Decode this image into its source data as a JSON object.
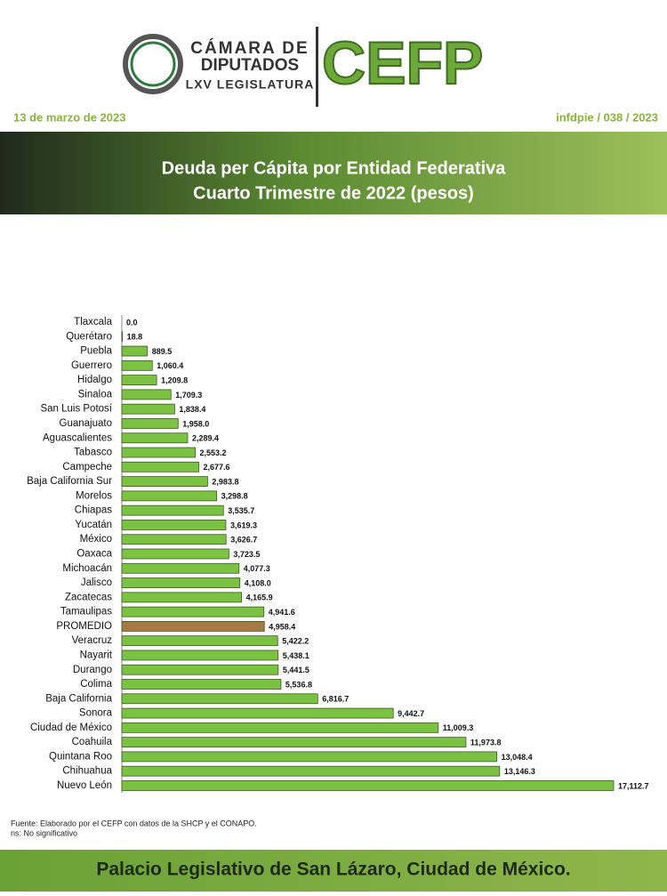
{
  "header": {
    "logo_line1": "CÁMARA DE",
    "logo_line2": "DIPUTADOS",
    "logo_line3": "LXV LEGISLATURA",
    "brand": "CEFP",
    "date": "13 de marzo de 2023",
    "reference": "infdpie / 038 / 2023"
  },
  "chart_data": {
    "type": "bar",
    "orientation": "horizontal",
    "title": "Deuda per Cápita por Entidad Federativa",
    "subtitle": "Cuarto Trimestre de 2022 (pesos)",
    "categories": [
      "Tlaxcala",
      "Querétaro",
      "Puebla",
      "Guerrero",
      "Hidalgo",
      "Sinaloa",
      "San Luis Potosí",
      "Guanajuato",
      "Aguascalientes",
      "Tabasco",
      "Campeche",
      "Baja California Sur",
      "Morelos",
      "Chiapas",
      "Yucatán",
      "México",
      "Oaxaca",
      "Michoacán",
      "Jalisco",
      "Zacatecas",
      "Tamaulipas",
      "PROMEDIO",
      "Veracruz",
      "Nayarit",
      "Durango",
      "Colima",
      "Baja California",
      "Sonora",
      "Ciudad de México",
      "Coahuila",
      "Quintana Roo",
      "Chihuahua",
      "Nuevo León"
    ],
    "values": [
      0,
      18.8,
      889.5,
      1060.4,
      1209.8,
      1709.3,
      1838.4,
      1958,
      2289.4,
      2553.2,
      2677.6,
      2983.8,
      3298.8,
      3535.7,
      3619.3,
      3626.7,
      3723.5,
      4077.3,
      4108,
      4165.9,
      4941.6,
      4958.4,
      5422.2,
      5438.1,
      5441.5,
      5536.8,
      6816.7,
      9442.7,
      11009.3,
      11973.8,
      13048.4,
      13146.3,
      17112.7
    ],
    "value_labels": [
      "0.0",
      "18.8",
      "889.5",
      "1,060.4",
      "1,209.8",
      "1,709.3",
      "1,838.4",
      "1,958.0",
      "2,289.4",
      "2,553.2",
      "2,677.6",
      "2,983.8",
      "3,298.8",
      "3,535.7",
      "3,619.3",
      "3,626.7",
      "3,723.5",
      "4,077.3",
      "4,108.0",
      "4,165.9",
      "4,941.6",
      "4,958.4",
      "5,422.2",
      "5,438.1",
      "5,441.5",
      "5,536.8",
      "6,816.7",
      "9,442.7",
      "11,009.3",
      "11,973.8",
      "13,048.4",
      "13,146.3",
      "17,112.7"
    ],
    "colors": [
      "#7cc242",
      "#7cc242",
      "#7cc242",
      "#7cc242",
      "#7cc242",
      "#7cc242",
      "#7cc242",
      "#7cc242",
      "#7cc242",
      "#7cc242",
      "#7cc242",
      "#7cc242",
      "#7cc242",
      "#7cc242",
      "#7cc242",
      "#7cc242",
      "#7cc242",
      "#7cc242",
      "#7cc242",
      "#7cc242",
      "#7cc242",
      "#a57a45",
      "#7cc242",
      "#7cc242",
      "#7cc242",
      "#7cc242",
      "#7cc242",
      "#7cc242",
      "#7cc242",
      "#7cc242",
      "#7cc242",
      "#7cc242",
      "#7cc242"
    ],
    "notes": [
      "Fuente: Elaborado por el CEFP con datos de la SHCP y el CONAPO.",
      "ns: No significativo"
    ]
  },
  "footer": {
    "text": "Palacio Legislativo de San Lázaro, Ciudad de México."
  }
}
